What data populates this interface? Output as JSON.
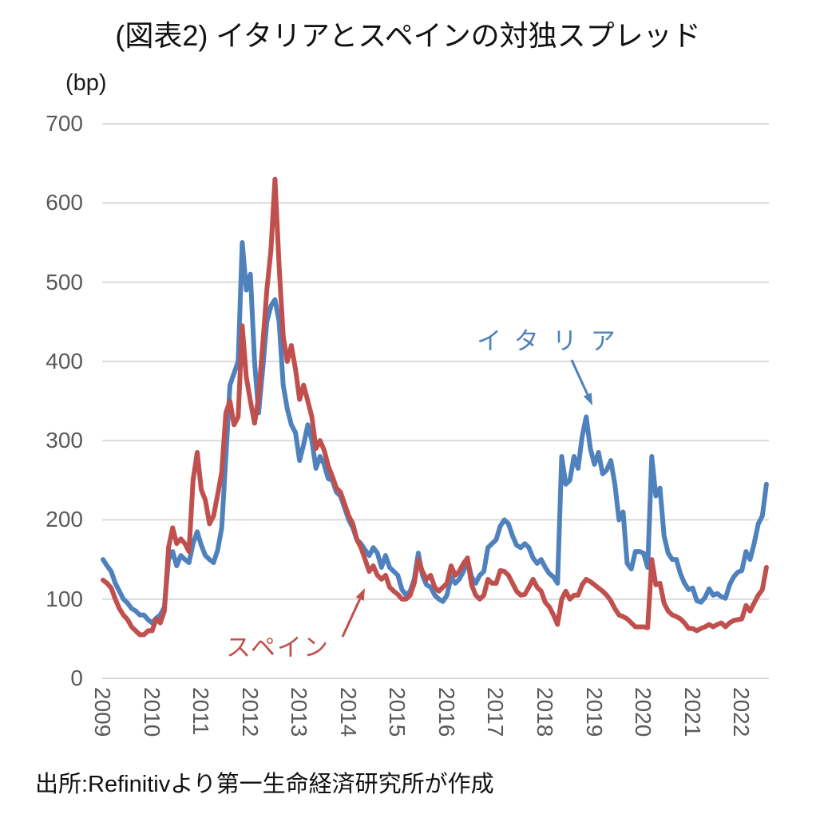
{
  "title": "(図表2) イタリアとスペインの対独スプレッド",
  "unit_label": "(bp)",
  "source": "出所:Refinitivより第一生命経済研究所が作成",
  "colors": {
    "italy": "#4F81BD",
    "spain": "#C0504D",
    "grid": "#D9D9D9",
    "tick_text": "#595959"
  },
  "annotations": {
    "italy": "イタリア",
    "spain": "スペイン"
  },
  "chart_data": {
    "type": "line",
    "title": "(図表2) イタリアとスペインの対独スプレッド",
    "ylabel": "(bp)",
    "ylim": [
      0,
      700
    ],
    "yticks": [
      0,
      100,
      200,
      300,
      400,
      500,
      600,
      700
    ],
    "xticks": [
      2009,
      2010,
      2011,
      2012,
      2013,
      2014,
      2015,
      2016,
      2017,
      2018,
      2019,
      2020,
      2021,
      2022
    ],
    "grid": "horizontal",
    "legend": "inline-annotations",
    "x_start": "2009-01",
    "x_end": "2022-07",
    "frequency": "monthly",
    "series": [
      {
        "name": "イタリア",
        "color": "#4F81BD",
        "values": [
          150,
          142,
          135,
          120,
          110,
          100,
          95,
          88,
          85,
          80,
          80,
          74,
          70,
          76,
          80,
          90,
          150,
          160,
          142,
          155,
          150,
          146,
          170,
          185,
          168,
          155,
          150,
          146,
          162,
          190,
          280,
          370,
          385,
          400,
          550,
          490,
          510,
          400,
          335,
          390,
          450,
          470,
          478,
          450,
          370,
          340,
          320,
          310,
          275,
          295,
          320,
          300,
          265,
          280,
          270,
          252,
          250,
          235,
          230,
          215,
          200,
          190,
          175,
          170,
          162,
          155,
          165,
          158,
          140,
          155,
          140,
          135,
          130,
          112,
          105,
          110,
          125,
          158,
          130,
          118,
          115,
          105,
          100,
          97,
          105,
          128,
          120,
          125,
          135,
          150,
          128,
          120,
          130,
          135,
          165,
          170,
          175,
          192,
          200,
          195,
          180,
          168,
          165,
          170,
          165,
          152,
          145,
          150,
          140,
          132,
          128,
          120,
          280,
          245,
          250,
          280,
          265,
          305,
          330,
          290,
          270,
          285,
          258,
          263,
          275,
          245,
          200,
          210,
          145,
          138,
          160,
          160,
          158,
          140,
          280,
          230,
          240,
          180,
          158,
          150,
          150,
          132,
          120,
          112,
          114,
          98,
          96,
          102,
          113,
          105,
          107,
          103,
          101,
          118,
          128,
          134,
          136,
          160,
          150,
          170,
          195,
          205,
          245
        ]
      },
      {
        "name": "スペイン",
        "color": "#C0504D",
        "values": [
          124,
          120,
          114,
          100,
          88,
          80,
          74,
          65,
          60,
          55,
          55,
          60,
          60,
          75,
          70,
          85,
          165,
          190,
          170,
          176,
          170,
          160,
          250,
          285,
          238,
          225,
          195,
          205,
          232,
          260,
          335,
          350,
          320,
          330,
          445,
          380,
          350,
          322,
          355,
          420,
          490,
          540,
          630,
          520,
          432,
          400,
          420,
          390,
          352,
          370,
          350,
          330,
          290,
          300,
          288,
          268,
          255,
          240,
          235,
          220,
          205,
          195,
          175,
          165,
          150,
          135,
          142,
          130,
          125,
          130,
          115,
          110,
          106,
          100,
          100,
          105,
          120,
          150,
          135,
          125,
          130,
          115,
          110,
          115,
          120,
          142,
          130,
          135,
          145,
          152,
          118,
          105,
          100,
          105,
          125,
          120,
          120,
          136,
          135,
          130,
          120,
          110,
          105,
          106,
          115,
          125,
          115,
          110,
          96,
          90,
          80,
          68,
          100,
          110,
          100,
          105,
          105,
          118,
          125,
          122,
          118,
          114,
          110,
          105,
          98,
          88,
          80,
          78,
          75,
          70,
          65,
          65,
          65,
          64,
          150,
          118,
          120,
          95,
          85,
          80,
          78,
          75,
          70,
          63,
          63,
          60,
          63,
          65,
          68,
          65,
          68,
          70,
          65,
          70,
          73,
          74,
          75,
          92,
          85,
          95,
          105,
          112,
          140
        ]
      }
    ]
  }
}
